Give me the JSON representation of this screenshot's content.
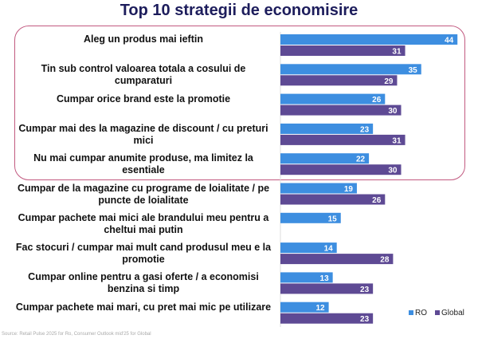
{
  "chart_data": {
    "type": "bar",
    "orientation": "horizontal",
    "title": "Top 10 strategii de economisire",
    "categories": [
      "Aleg un produs mai ieftin",
      "Tin sub control valoarea totala a cosului de cumparaturi",
      "Cumpar orice brand este la promotie",
      "Cumpar mai des la magazine de discount / cu preturi mici",
      "Nu mai cumpar anumite produse, ma limitez la esentiale",
      "Cumpar de la magazine cu programe de loialitate / pe puncte de loialitate",
      "Cumpar pachete mai mici ale brandului meu pentru a cheltui mai putin",
      "Fac stocuri / cumpar mai mult cand produsul meu e la promotie",
      "Cumpar online pentru a gasi oferte / a economisi benzina si timp",
      "Cumpar pachete mai mari, cu pret mai mic pe utilizare"
    ],
    "series": [
      {
        "name": "RO",
        "color": "#3d8ee0",
        "values": [
          44,
          35,
          26,
          23,
          22,
          19,
          15,
          14,
          13,
          12
        ]
      },
      {
        "name": "Global",
        "color": "#5e4a94",
        "values": [
          31,
          29,
          30,
          31,
          30,
          26,
          null,
          28,
          23,
          23
        ]
      }
    ],
    "highlighted_top": 5,
    "highlight_color": "#c25a80",
    "legend_position": "bottom-right",
    "grid": false,
    "source": "Source: Retail Pulse 2025 for Ro, Consumer Outlook mid'25 for Global"
  }
}
